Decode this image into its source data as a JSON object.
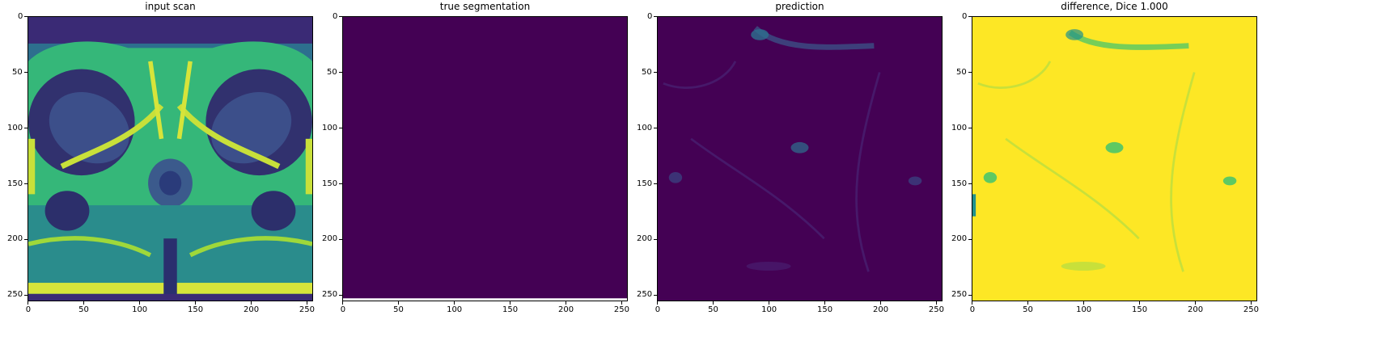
{
  "figure": {
    "panels": [
      {
        "id": "input",
        "title": "input scan",
        "image": "mri pelvis axial scan, viridis colormap",
        "colors": {
          "bg": "#3b1f7a",
          "mid": "#2a8c8c",
          "bright": "#c8e03a",
          "hi": "#fde725"
        }
      },
      {
        "id": "truth",
        "title": "true segmentation",
        "image": "uniform dark purple field",
        "colors": {
          "bg": "#440154"
        }
      },
      {
        "id": "pred",
        "title": "prediction",
        "image": "dark purple field with faint teal speckle",
        "colors": {
          "bg": "#440154",
          "speck": "#2d708e",
          "faint": "#3b2a6e"
        }
      },
      {
        "id": "diff",
        "title": "difference, Dice 1.000",
        "image": "yellow field with faint green speckle",
        "colors": {
          "bg": "#fde725",
          "speck": "#5ec962",
          "dark": "#21918c"
        }
      }
    ],
    "x_ticks": [
      "0",
      "50",
      "100",
      "150",
      "200",
      "250"
    ],
    "y_ticks": [
      "0",
      "50",
      "100",
      "150",
      "200",
      "250"
    ],
    "tick_values": [
      0,
      50,
      100,
      150,
      200,
      250
    ],
    "axis_max": 256
  }
}
